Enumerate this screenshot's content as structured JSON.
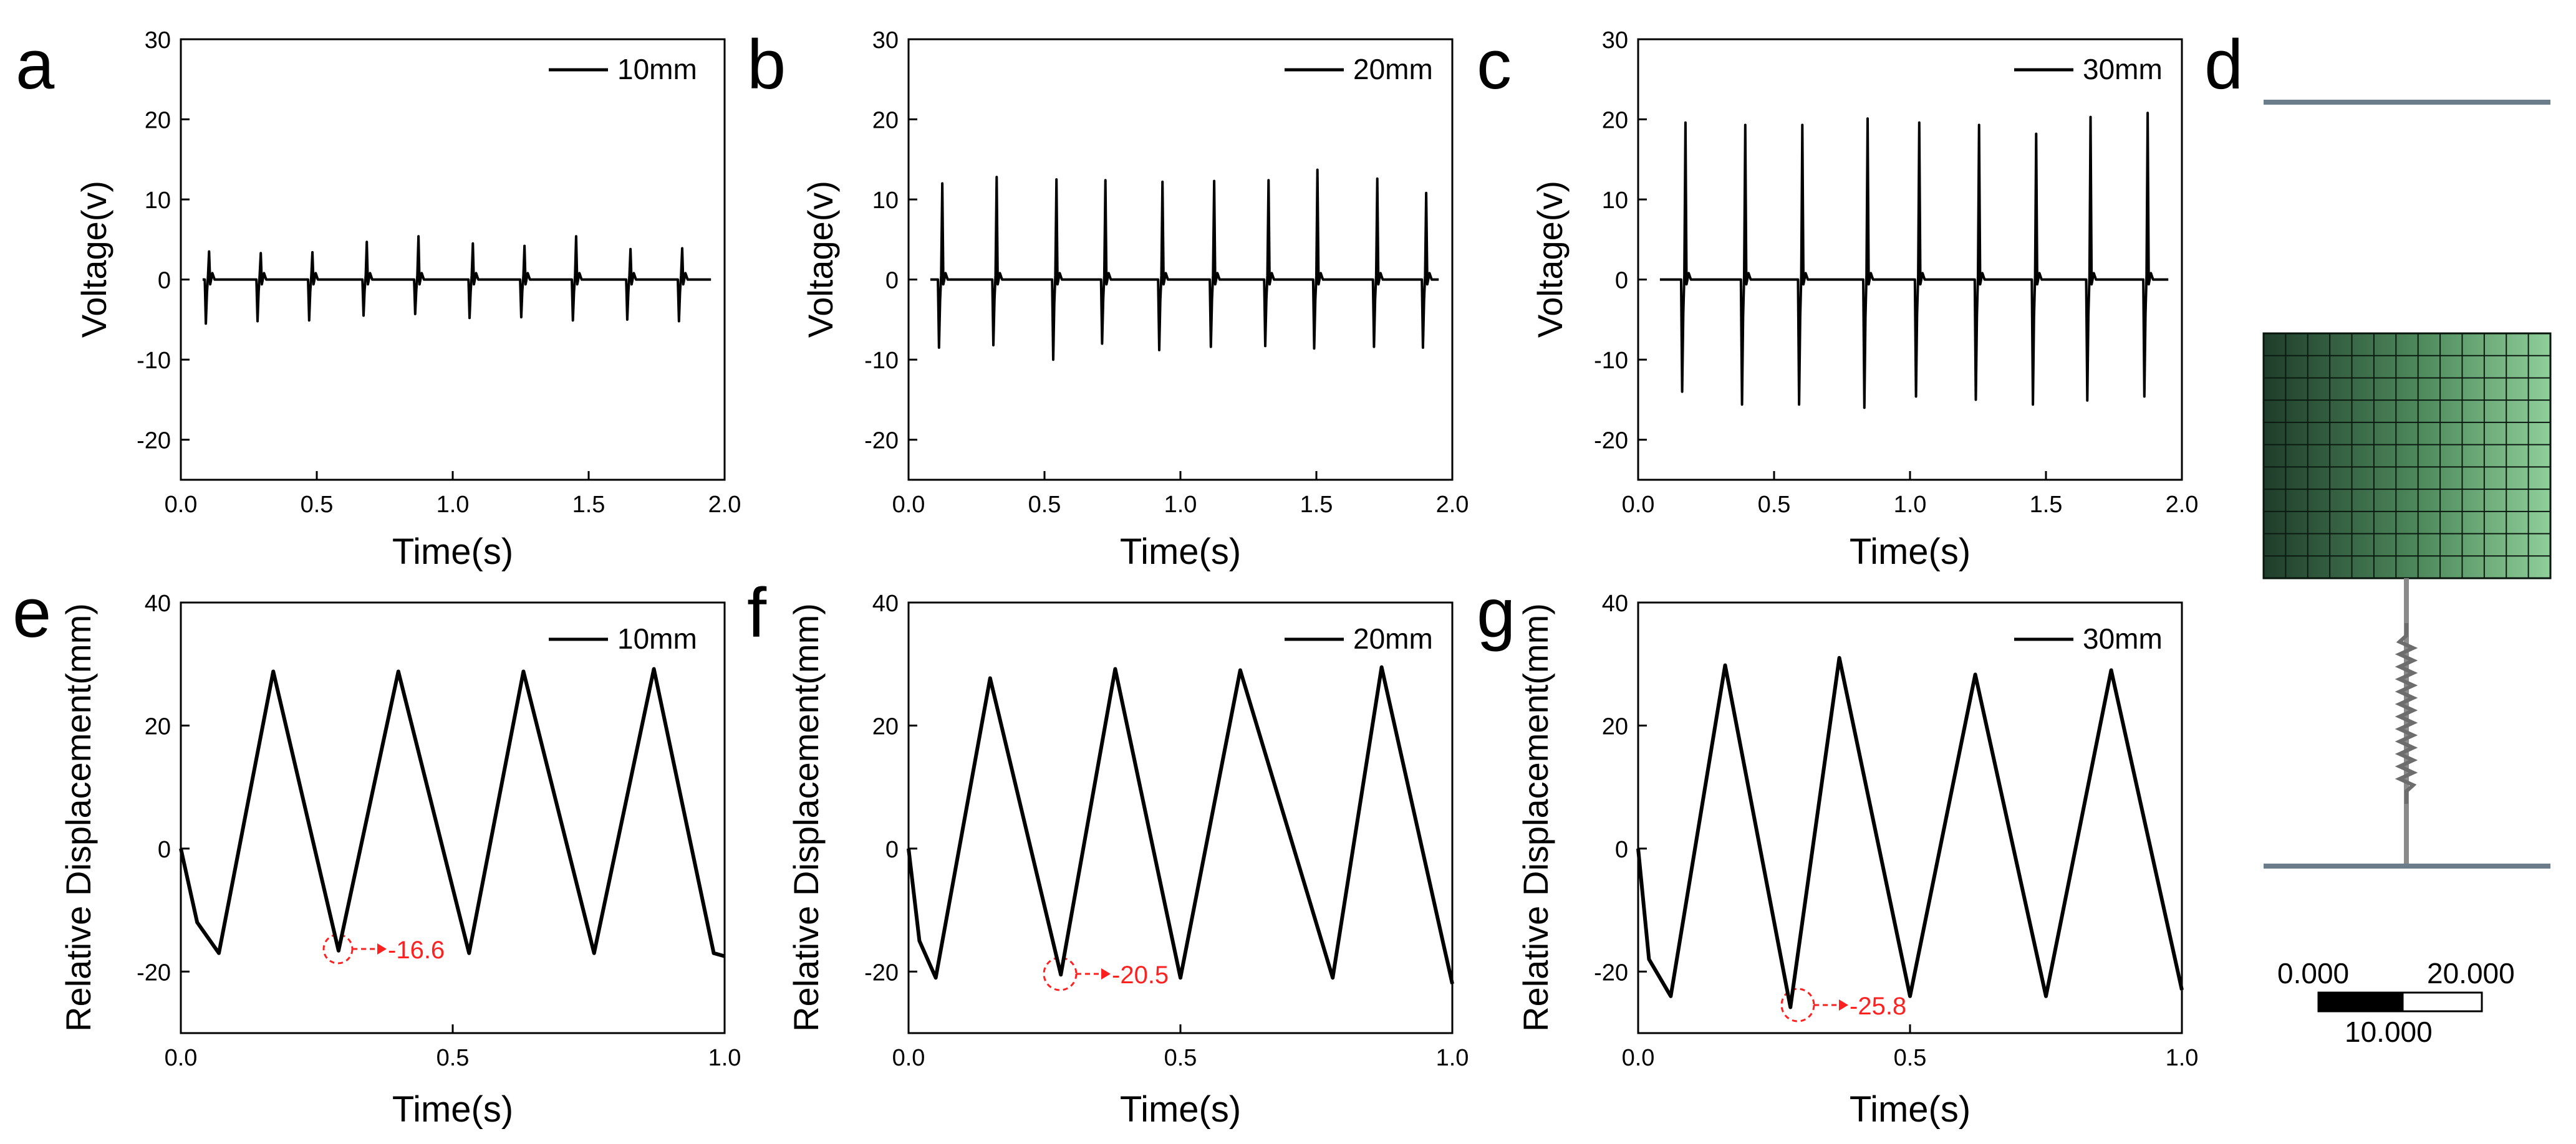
{
  "panels": [
    {
      "letter": "a",
      "legend": "10mm",
      "ylabel": "Voltage(v)",
      "xlabel": "Time(s)",
      "xticks": [
        "0.0",
        "0.5",
        "1.0",
        "1.5",
        "2.0"
      ],
      "yticks": [
        "30",
        "20",
        "10",
        "0",
        "-10",
        "-20"
      ]
    },
    {
      "letter": "b",
      "legend": "20mm",
      "ylabel": "Voltage(v)",
      "xlabel": "Time(s)",
      "xticks": [
        "0.0",
        "0.5",
        "1.0",
        "1.5",
        "2.0"
      ],
      "yticks": [
        "30",
        "20",
        "10",
        "0",
        "-10",
        "-20"
      ]
    },
    {
      "letter": "c",
      "legend": "30mm",
      "ylabel": "Voltage(v)",
      "xlabel": "Time(s)",
      "xticks": [
        "0.0",
        "0.5",
        "1.0",
        "1.5",
        "2.0"
      ],
      "yticks": [
        "30",
        "20",
        "10",
        "0",
        "-10",
        "-20"
      ]
    },
    {
      "letter": "e",
      "legend": "10mm",
      "ylabel": "Relative Displacement(mm)",
      "xlabel": "Time(s)",
      "xticks": [
        "0.0",
        "0.5",
        "1.0"
      ],
      "yticks": [
        "40",
        "20",
        "0",
        "-20"
      ],
      "annotation": "-16.6"
    },
    {
      "letter": "f",
      "legend": "20mm",
      "ylabel": "Relative Displacement(mm)",
      "xlabel": "Time(s)",
      "xticks": [
        "0.0",
        "0.5",
        "1.0"
      ],
      "yticks": [
        "40",
        "20",
        "0",
        "-20"
      ],
      "annotation": "-20.5"
    },
    {
      "letter": "g",
      "legend": "30mm",
      "ylabel": "Relative Displacement(mm)",
      "xlabel": "Time(s)",
      "xticks": [
        "0.0",
        "0.5",
        "1.0"
      ],
      "yticks": [
        "40",
        "20",
        "0",
        "-20"
      ],
      "annotation": "-25.8"
    }
  ],
  "panel_d": {
    "letter": "d",
    "scale_left": "0.000",
    "scale_right": "20.000",
    "scale_mid": "10.000",
    "mesh_color_dark": "#1f3d2b",
    "mesh_color_light": "#8fcf9a"
  },
  "colors": {
    "line": "#000000",
    "annotation": "#ff2020",
    "axis": "#000000"
  },
  "chart_data": [
    {
      "type": "line",
      "xlim": [
        0,
        2
      ],
      "ylim": [
        -25,
        30
      ],
      "legend": "10mm",
      "xlabel": "Time(s)",
      "ylabel": "Voltage(v)",
      "legend_position": "top-right",
      "pulse_times": [
        0.1,
        0.29,
        0.48,
        0.68,
        0.87,
        1.07,
        1.26,
        1.45,
        1.65,
        1.84
      ],
      "peaks": [
        3.5,
        3.3,
        3.4,
        4.7,
        5.4,
        4.5,
        4.2,
        5.4,
        3.8,
        3.9
      ],
      "troughs": [
        -5.5,
        -5.2,
        -5.1,
        -4.5,
        -4.3,
        -4.8,
        -4.7,
        -5.1,
        -5.0,
        -5.2
      ]
    },
    {
      "type": "line",
      "xlim": [
        0,
        2
      ],
      "ylim": [
        -25,
        30
      ],
      "legend": "20mm",
      "xlabel": "Time(s)",
      "ylabel": "Voltage(v)",
      "legend_position": "top-right",
      "pulse_times": [
        0.12,
        0.32,
        0.54,
        0.72,
        0.93,
        1.12,
        1.32,
        1.5,
        1.72,
        1.9
      ],
      "peaks": [
        12,
        12.8,
        12.5,
        12.4,
        12.2,
        12.3,
        12.4,
        13.7,
        12.6,
        10.8
      ],
      "troughs": [
        -8.5,
        -8.2,
        -10,
        -8,
        -8.8,
        -8.4,
        -8.3,
        -8.6,
        -8.4,
        -8.5
      ]
    },
    {
      "type": "line",
      "xlim": [
        0,
        2
      ],
      "ylim": [
        -25,
        30
      ],
      "legend": "30mm",
      "xlabel": "Time(s)",
      "ylabel": "Voltage(v)",
      "legend_position": "top-right",
      "pulse_times": [
        0.17,
        0.39,
        0.6,
        0.84,
        1.03,
        1.25,
        1.46,
        1.66,
        1.87
      ],
      "peaks": [
        19.6,
        19.3,
        19.3,
        20.1,
        19.6,
        19.3,
        18.2,
        20.3,
        20.8
      ],
      "troughs": [
        -14,
        -15.6,
        -15.6,
        -16,
        -14.6,
        -15,
        -15.6,
        -15.1,
        -14.6
      ]
    },
    {
      "type": "line",
      "xlim": [
        0,
        1
      ],
      "ylim": [
        -30,
        40
      ],
      "legend": "10mm",
      "xlabel": "Time(s)",
      "ylabel": "Relative Displacement(mm)",
      "legend_position": "top-right",
      "x": [
        0,
        0.03,
        0.07,
        0.17,
        0.29,
        0.4,
        0.53,
        0.63,
        0.76,
        0.87,
        0.98,
        1.0
      ],
      "y": [
        0,
        -12,
        -17,
        28.8,
        -16.6,
        28.8,
        -17,
        28.8,
        -17,
        29.2,
        -17,
        -17.5
      ]
    },
    {
      "type": "line",
      "xlim": [
        0,
        1
      ],
      "ylim": [
        -30,
        40
      ],
      "legend": "20mm",
      "xlabel": "Time(s)",
      "ylabel": "Relative Displacement(mm)",
      "legend_position": "top-right",
      "x": [
        0,
        0.02,
        0.05,
        0.15,
        0.28,
        0.38,
        0.5,
        0.61,
        0.78,
        0.87,
        1.0
      ],
      "y": [
        0,
        -15,
        -21,
        27.7,
        -20.5,
        29.2,
        -21,
        29,
        -21,
        29.5,
        -22
      ]
    },
    {
      "type": "line",
      "xlim": [
        0,
        1
      ],
      "ylim": [
        -30,
        40
      ],
      "legend": "30mm",
      "xlabel": "Time(s)",
      "ylabel": "Relative Displacement(mm)",
      "legend_position": "top-right",
      "x": [
        0,
        0.02,
        0.06,
        0.16,
        0.28,
        0.37,
        0.5,
        0.62,
        0.75,
        0.87,
        1.0
      ],
      "y": [
        0,
        -18,
        -24,
        29.8,
        -25.8,
        31,
        -24,
        28.3,
        -24,
        29,
        -23
      ]
    }
  ]
}
